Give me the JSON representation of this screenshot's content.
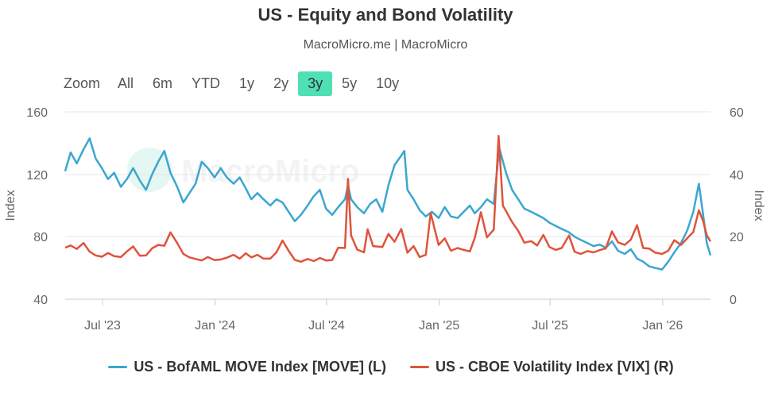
{
  "chart_data": {
    "type": "line",
    "title": "US - Equity and Bond Volatility",
    "subtitle": "MacroMicro.me | MacroMicro",
    "watermark": "MacroMicro",
    "left_axis": {
      "label": "Index",
      "min": 40,
      "max": 160,
      "ticks": [
        "160",
        "120",
        "80",
        "40"
      ]
    },
    "right_axis": {
      "label": "Index",
      "min": 0,
      "max": 60,
      "ticks": [
        "60",
        "40",
        "20",
        "0"
      ]
    },
    "x_range": [
      "2023-05-01",
      "2026-03-20"
    ],
    "x_ticks": [
      {
        "label": "Jul '23",
        "date": "2023-07-01"
      },
      {
        "label": "Jan '24",
        "date": "2024-01-01"
      },
      {
        "label": "Jul '24",
        "date": "2024-07-01"
      },
      {
        "label": "Jan '25",
        "date": "2025-01-01"
      },
      {
        "label": "Jul '25",
        "date": "2025-07-01"
      },
      {
        "label": "Jan '26",
        "date": "2026-01-01"
      }
    ],
    "series": [
      {
        "name": "US - BofAML MOVE Index [MOVE] (L)",
        "axis": "left",
        "color": "#3ba6d0",
        "points": [
          [
            "2023-05-01",
            122
          ],
          [
            "2023-05-10",
            134
          ],
          [
            "2023-05-20",
            127
          ],
          [
            "2023-05-31",
            136
          ],
          [
            "2023-06-10",
            143
          ],
          [
            "2023-06-20",
            130
          ],
          [
            "2023-06-30",
            124
          ],
          [
            "2023-07-10",
            117
          ],
          [
            "2023-07-20",
            121
          ],
          [
            "2023-07-31",
            112
          ],
          [
            "2023-08-10",
            117
          ],
          [
            "2023-08-20",
            124
          ],
          [
            "2023-08-31",
            116
          ],
          [
            "2023-09-10",
            110
          ],
          [
            "2023-09-20",
            120
          ],
          [
            "2023-09-30",
            128
          ],
          [
            "2023-10-10",
            135
          ],
          [
            "2023-10-20",
            121
          ],
          [
            "2023-10-31",
            112
          ],
          [
            "2023-11-10",
            102
          ],
          [
            "2023-11-20",
            108
          ],
          [
            "2023-11-30",
            114
          ],
          [
            "2023-12-10",
            128
          ],
          [
            "2023-12-20",
            124
          ],
          [
            "2023-12-31",
            118
          ],
          [
            "2024-01-10",
            124
          ],
          [
            "2024-01-20",
            118
          ],
          [
            "2024-01-31",
            114
          ],
          [
            "2024-02-10",
            118
          ],
          [
            "2024-02-20",
            111
          ],
          [
            "2024-02-29",
            104
          ],
          [
            "2024-03-10",
            108
          ],
          [
            "2024-03-20",
            104
          ],
          [
            "2024-03-31",
            100
          ],
          [
            "2024-04-10",
            104
          ],
          [
            "2024-04-20",
            102
          ],
          [
            "2024-04-30",
            96
          ],
          [
            "2024-05-10",
            90
          ],
          [
            "2024-05-20",
            94
          ],
          [
            "2024-05-31",
            100
          ],
          [
            "2024-06-10",
            106
          ],
          [
            "2024-06-20",
            110
          ],
          [
            "2024-06-30",
            98
          ],
          [
            "2024-07-10",
            94
          ],
          [
            "2024-07-20",
            99
          ],
          [
            "2024-07-31",
            104
          ],
          [
            "2024-08-05",
            113
          ],
          [
            "2024-08-10",
            104
          ],
          [
            "2024-08-20",
            99
          ],
          [
            "2024-08-31",
            95
          ],
          [
            "2024-09-10",
            101
          ],
          [
            "2024-09-20",
            104
          ],
          [
            "2024-09-30",
            96
          ],
          [
            "2024-10-10",
            113
          ],
          [
            "2024-10-20",
            126
          ],
          [
            "2024-10-31",
            132
          ],
          [
            "2024-11-05",
            135
          ],
          [
            "2024-11-10",
            110
          ],
          [
            "2024-11-20",
            104
          ],
          [
            "2024-11-30",
            97
          ],
          [
            "2024-12-10",
            93
          ],
          [
            "2024-12-20",
            96
          ],
          [
            "2024-12-31",
            92
          ],
          [
            "2025-01-10",
            99
          ],
          [
            "2025-01-20",
            93
          ],
          [
            "2025-01-31",
            92
          ],
          [
            "2025-02-10",
            96
          ],
          [
            "2025-02-20",
            100
          ],
          [
            "2025-02-28",
            95
          ],
          [
            "2025-03-10",
            99
          ],
          [
            "2025-03-20",
            104
          ],
          [
            "2025-03-31",
            101
          ],
          [
            "2025-04-09",
            137
          ],
          [
            "2025-04-20",
            121
          ],
          [
            "2025-04-30",
            110
          ],
          [
            "2025-05-10",
            104
          ],
          [
            "2025-05-20",
            98
          ],
          [
            "2025-05-31",
            96
          ],
          [
            "2025-06-10",
            94
          ],
          [
            "2025-06-20",
            92
          ],
          [
            "2025-06-30",
            89
          ],
          [
            "2025-07-10",
            87
          ],
          [
            "2025-07-20",
            85
          ],
          [
            "2025-07-31",
            83
          ],
          [
            "2025-08-10",
            80
          ],
          [
            "2025-08-20",
            78
          ],
          [
            "2025-08-31",
            76
          ],
          [
            "2025-09-10",
            74
          ],
          [
            "2025-09-20",
            75
          ],
          [
            "2025-09-30",
            73
          ],
          [
            "2025-10-10",
            77
          ],
          [
            "2025-10-20",
            71
          ],
          [
            "2025-10-31",
            69
          ],
          [
            "2025-11-10",
            72
          ],
          [
            "2025-11-20",
            66
          ],
          [
            "2025-11-30",
            64
          ],
          [
            "2025-12-10",
            61
          ],
          [
            "2025-12-20",
            60
          ],
          [
            "2025-12-31",
            59
          ],
          [
            "2026-01-10",
            64
          ],
          [
            "2026-01-20",
            70
          ],
          [
            "2026-01-31",
            76
          ],
          [
            "2026-02-10",
            84
          ],
          [
            "2026-02-20",
            96
          ],
          [
            "2026-03-01",
            114
          ],
          [
            "2026-03-08",
            94
          ],
          [
            "2026-03-14",
            76
          ],
          [
            "2026-03-20",
            68
          ]
        ]
      },
      {
        "name": "US - CBOE Volatility Index [VIX] (R)",
        "axis": "right",
        "color": "#e0533c",
        "points": [
          [
            "2023-05-01",
            16.5
          ],
          [
            "2023-05-10",
            17.2
          ],
          [
            "2023-05-20",
            16.1
          ],
          [
            "2023-05-31",
            18
          ],
          [
            "2023-06-10",
            15.2
          ],
          [
            "2023-06-20",
            14
          ],
          [
            "2023-06-30",
            13.6
          ],
          [
            "2023-07-10",
            14.8
          ],
          [
            "2023-07-20",
            13.8
          ],
          [
            "2023-07-31",
            13.5
          ],
          [
            "2023-08-10",
            15.3
          ],
          [
            "2023-08-20",
            16.9
          ],
          [
            "2023-08-31",
            13.9
          ],
          [
            "2023-09-10",
            14
          ],
          [
            "2023-09-20",
            16.3
          ],
          [
            "2023-09-30",
            17.4
          ],
          [
            "2023-10-10",
            17.1
          ],
          [
            "2023-10-20",
            21.4
          ],
          [
            "2023-10-31",
            18
          ],
          [
            "2023-11-10",
            14.5
          ],
          [
            "2023-11-20",
            13.4
          ],
          [
            "2023-11-30",
            12.9
          ],
          [
            "2023-12-10",
            12.4
          ],
          [
            "2023-12-20",
            13.5
          ],
          [
            "2023-12-31",
            12.5
          ],
          [
            "2024-01-10",
            12.7
          ],
          [
            "2024-01-20",
            13.3
          ],
          [
            "2024-01-31",
            14.2
          ],
          [
            "2024-02-10",
            13
          ],
          [
            "2024-02-20",
            14.7
          ],
          [
            "2024-02-29",
            13.4
          ],
          [
            "2024-03-10",
            14.2
          ],
          [
            "2024-03-20",
            13
          ],
          [
            "2024-03-31",
            13
          ],
          [
            "2024-04-10",
            15
          ],
          [
            "2024-04-20",
            18.8
          ],
          [
            "2024-04-30",
            15.5
          ],
          [
            "2024-05-10",
            12.6
          ],
          [
            "2024-05-20",
            12
          ],
          [
            "2024-05-31",
            12.9
          ],
          [
            "2024-06-10",
            12.2
          ],
          [
            "2024-06-20",
            13.2
          ],
          [
            "2024-06-30",
            12.4
          ],
          [
            "2024-07-10",
            12.5
          ],
          [
            "2024-07-20",
            16.5
          ],
          [
            "2024-07-31",
            16.4
          ],
          [
            "2024-08-05",
            38.6
          ],
          [
            "2024-08-10",
            20.4
          ],
          [
            "2024-08-20",
            15.9
          ],
          [
            "2024-08-31",
            15
          ],
          [
            "2024-09-06",
            22.4
          ],
          [
            "2024-09-15",
            17
          ],
          [
            "2024-09-30",
            16.7
          ],
          [
            "2024-10-10",
            20.9
          ],
          [
            "2024-10-20",
            18.4
          ],
          [
            "2024-10-31",
            22.5
          ],
          [
            "2024-11-10",
            14.9
          ],
          [
            "2024-11-20",
            17
          ],
          [
            "2024-11-30",
            13.5
          ],
          [
            "2024-12-10",
            14.2
          ],
          [
            "2024-12-18",
            27.6
          ],
          [
            "2024-12-31",
            17.4
          ],
          [
            "2025-01-10",
            19.5
          ],
          [
            "2025-01-20",
            15.5
          ],
          [
            "2025-01-31",
            16.4
          ],
          [
            "2025-02-10",
            15.8
          ],
          [
            "2025-02-20",
            15.3
          ],
          [
            "2025-02-28",
            19.6
          ],
          [
            "2025-03-10",
            27.9
          ],
          [
            "2025-03-20",
            19.8
          ],
          [
            "2025-03-31",
            22.3
          ],
          [
            "2025-04-08",
            52.3
          ],
          [
            "2025-04-15",
            30
          ],
          [
            "2025-04-30",
            24.7
          ],
          [
            "2025-05-10",
            21.9
          ],
          [
            "2025-05-20",
            18.1
          ],
          [
            "2025-05-31",
            18.6
          ],
          [
            "2025-06-10",
            17.2
          ],
          [
            "2025-06-20",
            20.6
          ],
          [
            "2025-06-30",
            16.7
          ],
          [
            "2025-07-10",
            15.8
          ],
          [
            "2025-07-20",
            16.4
          ],
          [
            "2025-08-01",
            20.4
          ],
          [
            "2025-08-10",
            15.2
          ],
          [
            "2025-08-20",
            14.5
          ],
          [
            "2025-08-31",
            15.4
          ],
          [
            "2025-09-10",
            15
          ],
          [
            "2025-09-20",
            15.7
          ],
          [
            "2025-09-30",
            16.3
          ],
          [
            "2025-10-10",
            21.7
          ],
          [
            "2025-10-20",
            18.2
          ],
          [
            "2025-10-31",
            17.4
          ],
          [
            "2025-11-10",
            19.1
          ],
          [
            "2025-11-20",
            23.7
          ],
          [
            "2025-11-30",
            16.4
          ],
          [
            "2025-12-10",
            16.2
          ],
          [
            "2025-12-20",
            14.9
          ],
          [
            "2025-12-31",
            14.5
          ],
          [
            "2026-01-10",
            15.5
          ],
          [
            "2026-01-20",
            18.9
          ],
          [
            "2026-01-31",
            17.4
          ],
          [
            "2026-02-10",
            19.5
          ],
          [
            "2026-02-20",
            21.5
          ],
          [
            "2026-03-01",
            28.5
          ],
          [
            "2026-03-08",
            25
          ],
          [
            "2026-03-14",
            20.5
          ],
          [
            "2026-03-20",
            18.5
          ]
        ]
      }
    ],
    "range_selector": {
      "zoom_label": "Zoom",
      "buttons": [
        "All",
        "6m",
        "YTD",
        "1y",
        "2y",
        "3y",
        "5y",
        "10y"
      ],
      "selected": "3y",
      "accent": "#4fe0b5"
    }
  }
}
